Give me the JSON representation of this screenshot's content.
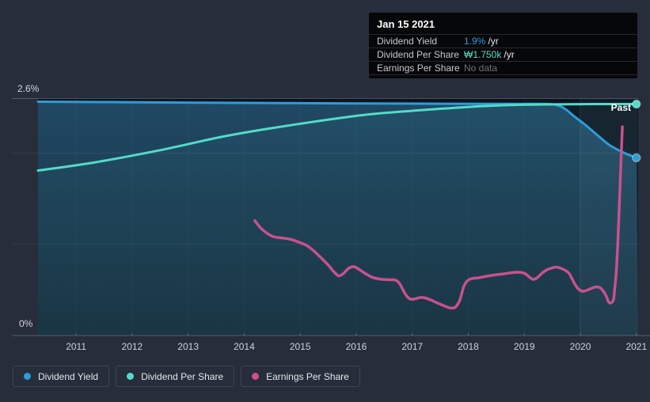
{
  "tooltip": {
    "date": "Jan 15 2021",
    "rows": [
      {
        "label": "Dividend Yield",
        "value": "1.9%",
        "suffix": "/yr",
        "color": "blue"
      },
      {
        "label": "Dividend Per Share",
        "value": "₩1.750k",
        "suffix": "/yr",
        "color": "teal"
      },
      {
        "label": "Earnings Per Share",
        "value": "No data",
        "suffix": "",
        "color": "nodata"
      }
    ]
  },
  "axis": {
    "y_top_label": "2.6%",
    "y_bottom_label": "0%"
  },
  "legend": {
    "items": [
      {
        "label": "Dividend Yield",
        "color": "#2d9cdb"
      },
      {
        "label": "Dividend Per Share",
        "color": "#53dbc9"
      },
      {
        "label": "Earnings Per Share",
        "color": "#c9518d"
      }
    ]
  },
  "colors": {
    "background": "#272d3a",
    "dividend_yield": "#2d9cdb",
    "dividend_per_share": "#53dbc9",
    "earnings_per_share": "#c9518d",
    "tooltip_background": "#060709"
  },
  "chart_data": {
    "type": "line",
    "annotations": {
      "past_label": "Past",
      "tooltip_date": "Jan 15 2021"
    },
    "x_axis": {
      "domain": [
        2010.32,
        2021.0
      ],
      "ticks": [
        2011,
        2012,
        2013,
        2014,
        2015,
        2016,
        2017,
        2018,
        2019,
        2020,
        2021
      ]
    },
    "y_axis": {
      "domain": [
        0,
        2.6
      ],
      "top_label": "2.6%",
      "bottom_label": "0%",
      "gridlines_pct": [
        0,
        1.0,
        2.0,
        2.6
      ],
      "units": "percent (Dividend Yield axis; other series plotted on same visual scale)"
    },
    "highlight_band_start": 2020.0,
    "series": [
      {
        "name": "Dividend Yield",
        "color": "#2d9cdb",
        "width": 3,
        "end_dot": true,
        "area_fill": true,
        "end_value": "1.9% /yr",
        "points": [
          [
            2010.32,
            2.565
          ],
          [
            2011.8,
            2.56
          ],
          [
            2013.9,
            2.552
          ],
          [
            2016.0,
            2.546
          ],
          [
            2017.6,
            2.543
          ],
          [
            2018.7,
            2.541
          ],
          [
            2019.4,
            2.54
          ],
          [
            2019.6,
            2.525
          ],
          [
            2019.74,
            2.48
          ],
          [
            2019.88,
            2.41
          ],
          [
            2020.09,
            2.31
          ],
          [
            2020.3,
            2.2
          ],
          [
            2020.52,
            2.09
          ],
          [
            2020.76,
            2.01
          ],
          [
            2021.0,
            1.95
          ]
        ]
      },
      {
        "name": "Dividend Per Share",
        "color": "#53dbc9",
        "width": 3,
        "end_dot": true,
        "area_fill": false,
        "end_value": "₩1.750k /yr",
        "points": [
          [
            2010.32,
            1.81
          ],
          [
            2011.34,
            1.9
          ],
          [
            2012.47,
            2.03
          ],
          [
            2013.6,
            2.18
          ],
          [
            2014.44,
            2.27
          ],
          [
            2015.29,
            2.35
          ],
          [
            2016.14,
            2.42
          ],
          [
            2016.99,
            2.465
          ],
          [
            2017.69,
            2.495
          ],
          [
            2018.26,
            2.517
          ],
          [
            2018.82,
            2.53
          ],
          [
            2019.53,
            2.536
          ],
          [
            2020.23,
            2.539
          ],
          [
            2021.0,
            2.539
          ]
        ]
      },
      {
        "name": "Earnings Per Share",
        "color": "#c9518d",
        "width": 3.5,
        "end_dot": false,
        "area_fill": false,
        "end_value": "No data",
        "points": [
          [
            2014.19,
            1.26
          ],
          [
            2014.28,
            1.19
          ],
          [
            2014.39,
            1.13
          ],
          [
            2014.52,
            1.085
          ],
          [
            2014.68,
            1.07
          ],
          [
            2014.83,
            1.055
          ],
          [
            2014.97,
            1.025
          ],
          [
            2015.11,
            0.99
          ],
          [
            2015.24,
            0.93
          ],
          [
            2015.36,
            0.86
          ],
          [
            2015.49,
            0.78
          ],
          [
            2015.6,
            0.7
          ],
          [
            2015.69,
            0.655
          ],
          [
            2015.77,
            0.68
          ],
          [
            2015.87,
            0.74
          ],
          [
            2015.96,
            0.755
          ],
          [
            2016.04,
            0.73
          ],
          [
            2016.15,
            0.685
          ],
          [
            2016.28,
            0.64
          ],
          [
            2016.42,
            0.62
          ],
          [
            2016.59,
            0.612
          ],
          [
            2016.7,
            0.608
          ],
          [
            2016.77,
            0.573
          ],
          [
            2016.84,
            0.495
          ],
          [
            2016.9,
            0.434
          ],
          [
            2016.97,
            0.399
          ],
          [
            2017.06,
            0.404
          ],
          [
            2017.14,
            0.417
          ],
          [
            2017.23,
            0.412
          ],
          [
            2017.33,
            0.391
          ],
          [
            2017.42,
            0.365
          ],
          [
            2017.52,
            0.339
          ],
          [
            2017.62,
            0.313
          ],
          [
            2017.71,
            0.3
          ],
          [
            2017.78,
            0.317
          ],
          [
            2017.85,
            0.391
          ],
          [
            2017.92,
            0.538
          ],
          [
            2017.99,
            0.603
          ],
          [
            2018.07,
            0.625
          ],
          [
            2018.19,
            0.634
          ],
          [
            2018.33,
            0.651
          ],
          [
            2018.47,
            0.664
          ],
          [
            2018.64,
            0.677
          ],
          [
            2018.79,
            0.69
          ],
          [
            2018.91,
            0.694
          ],
          [
            2019.01,
            0.681
          ],
          [
            2019.09,
            0.642
          ],
          [
            2019.16,
            0.616
          ],
          [
            2019.23,
            0.634
          ],
          [
            2019.32,
            0.686
          ],
          [
            2019.4,
            0.72
          ],
          [
            2019.5,
            0.742
          ],
          [
            2019.58,
            0.751
          ],
          [
            2019.67,
            0.733
          ],
          [
            2019.74,
            0.712
          ],
          [
            2019.8,
            0.681
          ],
          [
            2019.85,
            0.625
          ],
          [
            2019.91,
            0.556
          ],
          [
            2019.97,
            0.508
          ],
          [
            2020.04,
            0.486
          ],
          [
            2020.11,
            0.495
          ],
          [
            2020.19,
            0.516
          ],
          [
            2020.28,
            0.534
          ],
          [
            2020.35,
            0.525
          ],
          [
            2020.4,
            0.495
          ],
          [
            2020.46,
            0.434
          ],
          [
            2020.5,
            0.373
          ],
          [
            2020.54,
            0.356
          ],
          [
            2020.59,
            0.391
          ],
          [
            2020.61,
            0.495
          ],
          [
            2020.64,
            0.686
          ],
          [
            2020.67,
            1.03
          ],
          [
            2020.7,
            1.51
          ],
          [
            2020.73,
            1.99
          ],
          [
            2020.75,
            2.29
          ]
        ]
      }
    ]
  }
}
